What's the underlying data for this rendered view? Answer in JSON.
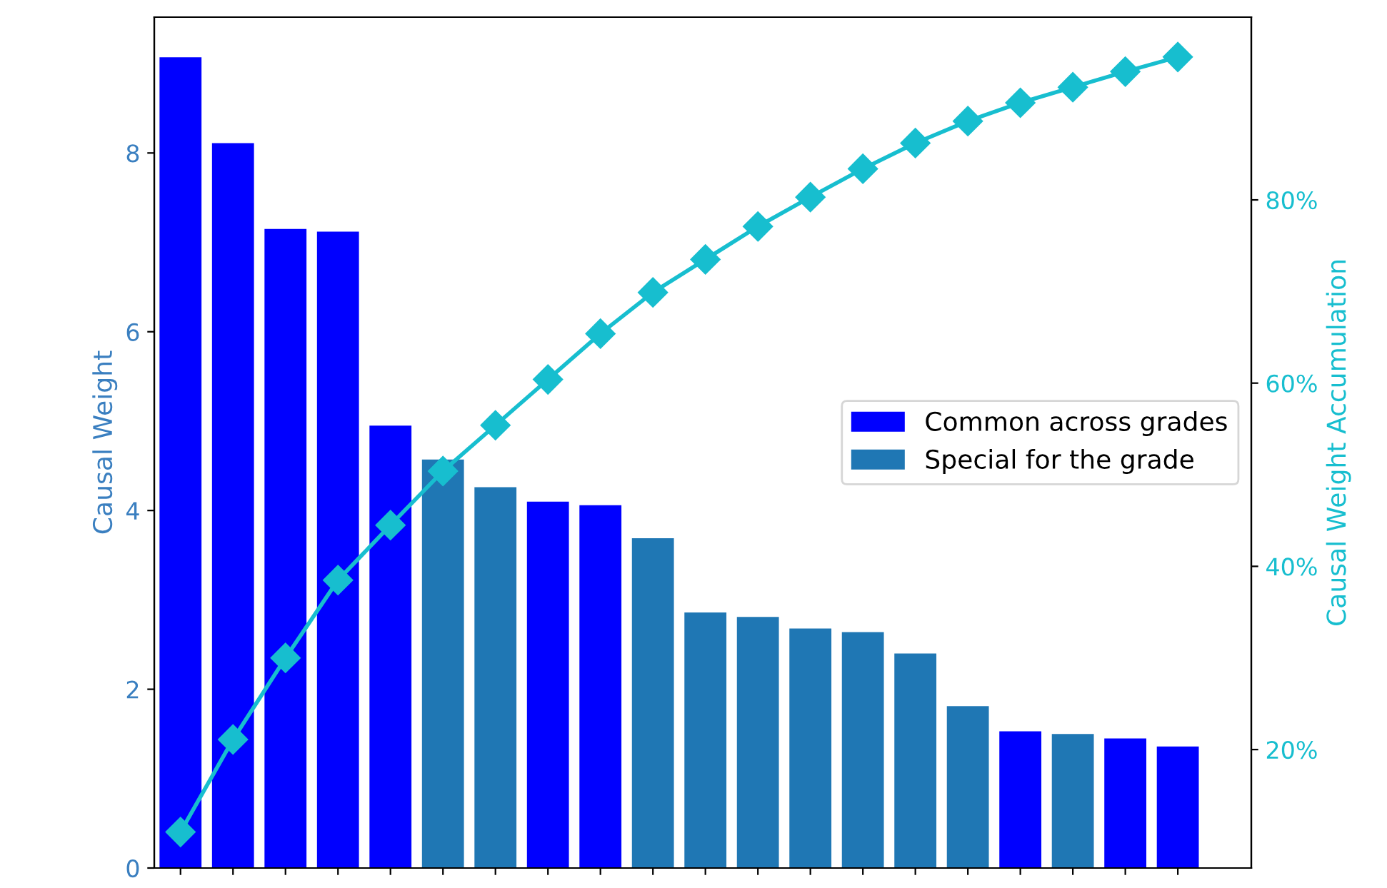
{
  "chart_data": {
    "type": "bar",
    "ylabel": "Causal Weight",
    "y2label": "Causal Weight Accumulation",
    "categories": [
      null,
      null,
      null,
      null,
      null,
      null,
      null,
      null,
      null,
      null,
      null,
      null,
      null,
      null,
      null,
      null,
      null,
      null,
      null,
      null
    ],
    "series": [
      {
        "name": "Common across grades",
        "color": "#0000ff",
        "values": [
          9.07,
          8.11,
          7.15,
          7.12,
          4.95,
          null,
          null,
          4.1,
          4.06,
          null,
          null,
          null,
          null,
          null,
          null,
          null,
          1.53,
          null,
          1.45,
          1.36
        ]
      },
      {
        "name": "Special for the grade",
        "color": "#1f77b4",
        "values": [
          null,
          null,
          null,
          null,
          null,
          4.57,
          4.26,
          null,
          null,
          3.69,
          2.86,
          2.81,
          2.68,
          2.64,
          2.4,
          1.81,
          null,
          1.5,
          null,
          null
        ]
      },
      {
        "type": "line",
        "axis": "y2",
        "color": "#17becf",
        "marker": "diamond",
        "line_style": "solid",
        "values": [
          11.0,
          21.1,
          30.0,
          38.5,
          44.5,
          50.4,
          55.4,
          60.4,
          65.4,
          69.9,
          73.5,
          77.1,
          80.3,
          83.4,
          86.2,
          88.6,
          90.6,
          92.3,
          94.0,
          95.6
        ]
      }
    ],
    "ylim": [
      0,
      9.52
    ],
    "yticks": [
      0,
      2,
      4,
      6,
      8
    ],
    "y2lim": [
      7.07,
      99.95
    ],
    "y2ticks": [
      {
        "value": 20,
        "label": "20%"
      },
      {
        "value": 40,
        "label": "40%"
      },
      {
        "value": 60,
        "label": "60%"
      },
      {
        "value": 80,
        "label": "80%"
      }
    ],
    "tick_labels": "y",
    "legend": "center right",
    "grid": false
  }
}
